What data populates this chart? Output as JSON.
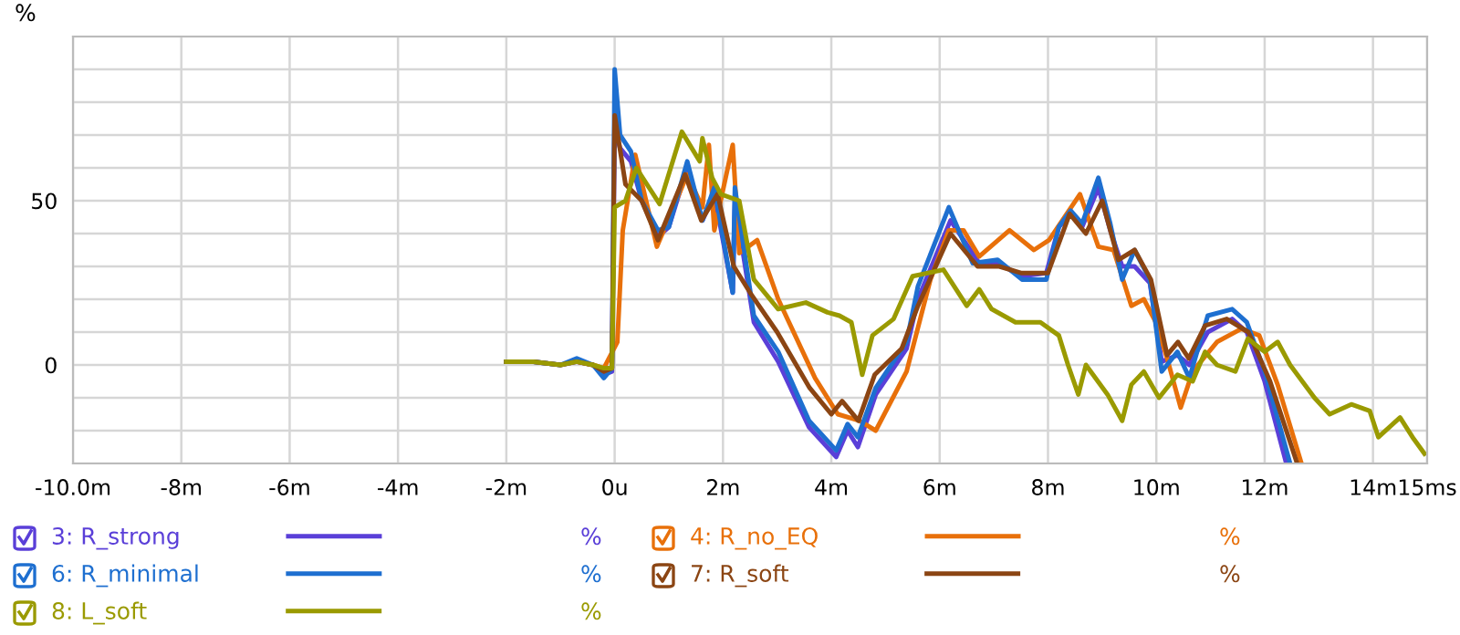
{
  "chart_data": {
    "type": "line",
    "ylabel": "%",
    "xlim": [
      -10,
      15
    ],
    "ylim": [
      -30,
      100
    ],
    "xticks": [
      {
        "value": -10,
        "label": "-10.0m"
      },
      {
        "value": -8,
        "label": "-8m"
      },
      {
        "value": -6,
        "label": "-6m"
      },
      {
        "value": -4,
        "label": "-4m"
      },
      {
        "value": -2,
        "label": "-2m"
      },
      {
        "value": 0,
        "label": "0u"
      },
      {
        "value": 2,
        "label": "2m"
      },
      {
        "value": 4,
        "label": "4m"
      },
      {
        "value": 6,
        "label": "6m"
      },
      {
        "value": 8,
        "label": "8m"
      },
      {
        "value": 10,
        "label": "10m"
      },
      {
        "value": 12,
        "label": "12m"
      },
      {
        "value": 14,
        "label": "14m"
      },
      {
        "value": 15,
        "label": "15ms"
      }
    ],
    "yticks": [
      {
        "value": -30,
        "label": null
      },
      {
        "value": -20,
        "label": null
      },
      {
        "value": -10,
        "label": null
      },
      0,
      {
        "value": 10,
        "label": null
      },
      {
        "value": 20,
        "label": null
      },
      {
        "value": 30,
        "label": null
      },
      {
        "value": 40,
        "label": null
      },
      50,
      {
        "value": 60,
        "label": null
      },
      {
        "value": 70,
        "label": null
      },
      {
        "value": 80,
        "label": null
      },
      {
        "value": 90,
        "label": null
      },
      {
        "value": 100,
        "label": null
      }
    ],
    "grid": true,
    "legend": "bottom",
    "marker": "none",
    "line_style": "solid",
    "annotations": [
      "%",
      "%",
      "%",
      "%",
      "%"
    ],
    "series": [
      {
        "name": "3: R_strong",
        "color": "#5a3fd8",
        "x": [
          -2,
          -1.5,
          -1,
          -0.7,
          -0.4,
          -0.2,
          -0.05,
          0,
          0.1,
          0.3,
          0.5,
          0.8,
          1.0,
          1.34,
          1.62,
          1.84,
          2.18,
          2.22,
          2.57,
          3.02,
          3.59,
          4.09,
          4.3,
          4.49,
          4.82,
          5.39,
          5.6,
          6.2,
          6.73,
          7.07,
          7.52,
          7.97,
          8.2,
          8.42,
          8.63,
          8.93,
          9.15,
          9.37,
          9.6,
          9.88,
          10.1,
          10.39,
          10.61,
          10.95,
          11.4,
          11.67,
          12.0,
          12.4
        ],
        "values": [
          1,
          1,
          0,
          1,
          0,
          -3,
          -2,
          72,
          66,
          62,
          50,
          39,
          42,
          60,
          44,
          52,
          22,
          50,
          13,
          1,
          -19,
          -28,
          -20,
          -25,
          -9,
          5,
          20,
          44,
          31,
          31,
          27,
          28,
          42,
          46,
          42,
          54,
          41,
          30,
          30,
          25,
          1,
          3,
          0,
          10,
          14,
          10,
          -5,
          -30
        ]
      },
      {
        "name": "4: R_no_EQ",
        "color": "#e8700a",
        "x": [
          -0.7,
          -0.4,
          -0.2,
          0.05,
          0.15,
          0.38,
          0.78,
          1.34,
          1.62,
          1.74,
          1.84,
          2.18,
          2.3,
          2.63,
          3.02,
          3.7,
          4.12,
          4.52,
          4.82,
          5.39,
          5.83,
          6.17,
          6.44,
          6.73,
          7.29,
          7.74,
          8.02,
          8.59,
          8.93,
          9.21,
          9.54,
          9.77,
          9.99,
          10.2,
          10.45,
          10.67,
          11.12,
          11.57,
          11.9,
          12.24,
          12.68
        ],
        "values": [
          1,
          0,
          -1,
          7,
          41,
          64,
          36,
          58,
          48,
          67,
          41,
          67,
          34,
          38,
          20,
          -4,
          -15,
          -17,
          -20,
          -2,
          26,
          41,
          41,
          33,
          41,
          35,
          38,
          52,
          36,
          35,
          18,
          20,
          13,
          2,
          -13,
          -2,
          7,
          11,
          9,
          -6,
          -30
        ]
      },
      {
        "name": "6: R_minimal",
        "color": "#1e6fd0",
        "x": [
          -2,
          -1.5,
          -1,
          -0.7,
          -0.4,
          -0.2,
          -0.05,
          0,
          0.1,
          0.3,
          0.5,
          0.8,
          1.0,
          1.34,
          1.62,
          1.84,
          2.18,
          2.22,
          2.57,
          3.02,
          3.59,
          4.09,
          4.3,
          4.49,
          4.82,
          5.39,
          5.6,
          6.17,
          6.61,
          7.07,
          7.52,
          7.97,
          8.2,
          8.42,
          8.63,
          8.93,
          9.15,
          9.37,
          9.6,
          9.88,
          10.1,
          10.39,
          10.61,
          10.95,
          11.4,
          11.67,
          12.0,
          12.47
        ],
        "values": [
          1,
          1,
          0,
          2,
          0,
          -4,
          -1,
          90,
          70,
          65,
          50,
          41,
          42,
          62,
          44,
          54,
          22,
          54,
          15,
          4,
          -17,
          -26,
          -18,
          -22,
          -7,
          7,
          24,
          48,
          31,
          32,
          26,
          26,
          42,
          47,
          43,
          57,
          43,
          26,
          35,
          26,
          -2,
          4,
          -4,
          15,
          17,
          13,
          -2,
          -30
        ]
      },
      {
        "name": "7: R_soft",
        "color": "#8b4513",
        "x": [
          -2,
          -1.5,
          -1,
          -0.7,
          -0.4,
          -0.2,
          -0.05,
          0,
          0.2,
          0.5,
          0.8,
          1.3,
          1.6,
          1.9,
          2.2,
          2.5,
          3.0,
          3.6,
          4.0,
          4.2,
          4.5,
          4.8,
          5.3,
          5.6,
          6.2,
          6.7,
          7.1,
          7.5,
          8.0,
          8.4,
          8.7,
          9.0,
          9.3,
          9.6,
          9.9,
          10.2,
          10.4,
          10.6,
          10.9,
          11.3,
          11.7,
          12.1,
          12.6
        ],
        "values": [
          1,
          1,
          0,
          1,
          0,
          -2,
          -1,
          76,
          55,
          50,
          38,
          58,
          44,
          52,
          30,
          22,
          10,
          -7,
          -15,
          -11,
          -17,
          -3,
          5,
          18,
          40,
          30,
          30,
          28,
          28,
          46,
          40,
          50,
          32,
          35,
          26,
          3,
          7,
          2,
          12,
          14,
          10,
          -5,
          -30
        ]
      },
      {
        "name": "8: L_soft",
        "color": "#9a9a00",
        "x": [
          -2,
          -1.5,
          -1,
          -0.7,
          -0.4,
          -0.2,
          -0.05,
          0,
          0.2,
          0.4,
          0.83,
          1.24,
          1.57,
          1.62,
          1.8,
          1.96,
          2.3,
          2.57,
          3.02,
          3.53,
          3.93,
          4.15,
          4.37,
          4.57,
          4.76,
          5.15,
          5.5,
          6.07,
          6.5,
          6.73,
          6.96,
          7.4,
          7.86,
          8.2,
          8.37,
          8.56,
          8.7,
          9.1,
          9.37,
          9.54,
          9.77,
          10.05,
          10.39,
          10.67,
          10.9,
          11.12,
          11.46,
          11.69,
          12.0,
          12.24,
          12.47,
          12.92,
          13.2,
          13.6,
          13.94,
          14.1,
          14.5,
          14.73,
          14.95
        ],
        "values": [
          1,
          1,
          0,
          1,
          0,
          -1,
          -1,
          48,
          50,
          60,
          49,
          71,
          62,
          69,
          57,
          52,
          50,
          26,
          17,
          19,
          16,
          15,
          13,
          -3,
          9,
          14,
          27,
          29,
          18,
          23,
          17,
          13,
          13,
          9,
          0,
          -9,
          0,
          -9,
          -17,
          -6,
          -2,
          -10,
          -3,
          -5,
          4,
          0,
          -2,
          8,
          4,
          7,
          0,
          -10,
          -15,
          -12,
          -14,
          -22,
          -16,
          -22,
          -27
        ]
      }
    ]
  }
}
